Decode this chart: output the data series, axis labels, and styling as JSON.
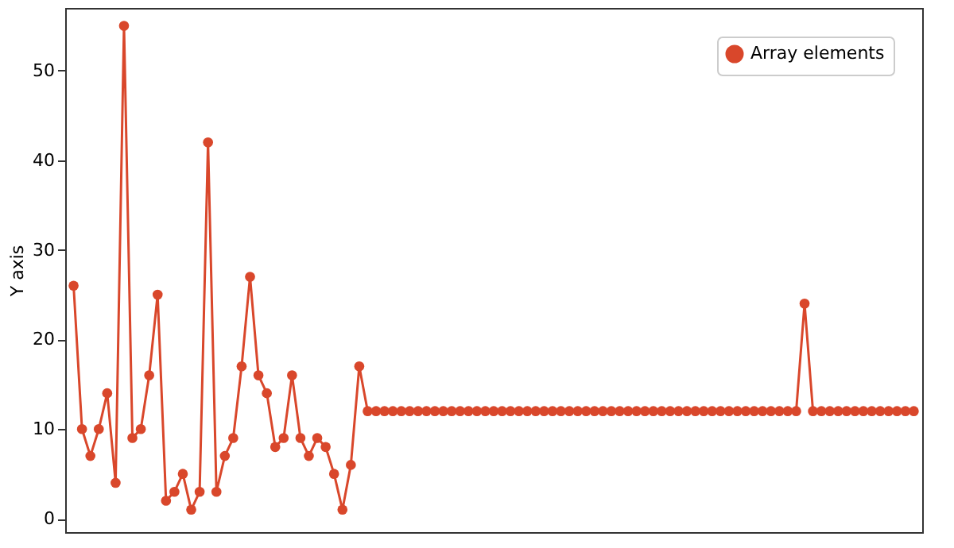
{
  "chart_data": {
    "type": "line",
    "ylabel": "Y axis",
    "categories": [
      null,
      null,
      null,
      null,
      null,
      null,
      null,
      null,
      null,
      null,
      null,
      null,
      null,
      null,
      null,
      null,
      null,
      null,
      null,
      null,
      null,
      null,
      null,
      null,
      null,
      null,
      null,
      null,
      null,
      null,
      null,
      null,
      null,
      null,
      null,
      null,
      null,
      null,
      null,
      null,
      null,
      null,
      null,
      null,
      null,
      null,
      null,
      null,
      null,
      null,
      null,
      null,
      null,
      null,
      null,
      null,
      null,
      null,
      null,
      null,
      null,
      null,
      null,
      null,
      null,
      null,
      null,
      null,
      null,
      null,
      null,
      null,
      null,
      null,
      null,
      null,
      null,
      null,
      null,
      null,
      null,
      null,
      null,
      null,
      null,
      null,
      null,
      null,
      null,
      null,
      null,
      null,
      null,
      null,
      null,
      null,
      null,
      null,
      null,
      null,
      null
    ],
    "series": [
      {
        "name": "Array elements",
        "color": "#d9472b",
        "values": [
          26,
          10,
          7,
          10,
          14,
          4,
          55,
          9,
          10,
          16,
          25,
          2,
          3,
          5,
          1,
          3,
          42,
          3,
          7,
          9,
          17,
          27,
          16,
          14,
          8,
          9,
          16,
          9,
          7,
          9,
          8,
          5,
          1,
          6,
          17,
          12,
          12,
          12,
          12,
          12,
          12,
          12,
          12,
          12,
          12,
          12,
          12,
          12,
          12,
          12,
          12,
          12,
          12,
          12,
          12,
          12,
          12,
          12,
          12,
          12,
          12,
          12,
          12,
          12,
          12,
          12,
          12,
          12,
          12,
          12,
          12,
          12,
          12,
          12,
          12,
          12,
          12,
          12,
          12,
          12,
          12,
          12,
          12,
          12,
          12,
          12,
          12,
          24,
          12,
          12,
          12,
          12,
          12,
          12,
          12,
          12,
          12,
          12,
          12,
          12,
          12
        ]
      }
    ],
    "ylim": [
      -1.5,
      57
    ],
    "yticks": [
      0,
      10,
      20,
      30,
      40,
      50
    ],
    "tick_labels": "y",
    "grid": false,
    "legend": "top right",
    "marker": "circle",
    "line_style": "solid"
  }
}
